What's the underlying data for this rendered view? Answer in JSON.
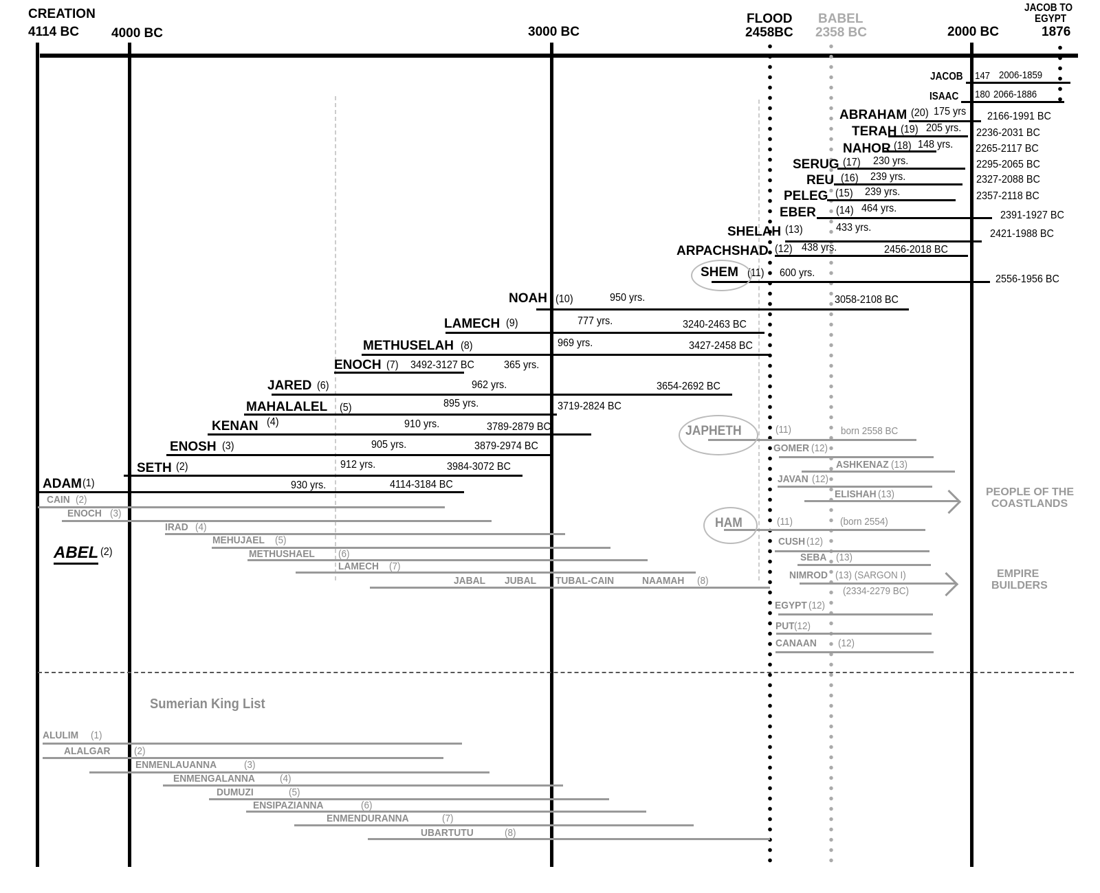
{
  "headers": {
    "creation": "CREATION",
    "creation_year": "4114 BC",
    "bc4000": "4000 BC",
    "bc3000": "3000 BC",
    "flood": "FLOOD",
    "flood_year": "2458BC",
    "babel": "BABEL",
    "babel_year": "2358 BC",
    "bc2000": "2000 BC",
    "jacob_egypt_1": "JACOB TO",
    "jacob_egypt_2": "EGYPT",
    "jacob_egypt_year": "1876"
  },
  "patriarchs": [
    {
      "name": "JACOB",
      "num": "",
      "years": "147",
      "dates": "2006-1859"
    },
    {
      "name": "ISAAC",
      "num": "",
      "years": "180",
      "dates": "2066-1886"
    },
    {
      "name": "ABRAHAM",
      "num": "(20)",
      "years": "175 yrs",
      "dates": "2166-1991 BC"
    },
    {
      "name": "TERAH",
      "num": "(19)",
      "years": "205 yrs.",
      "dates": "2236-2031 BC"
    },
    {
      "name": "NAHOR",
      "num": "(18)",
      "years": "148 yrs.",
      "dates": "2265-2117 BC"
    },
    {
      "name": "SERUG",
      "num": "(17)",
      "years": "230 yrs.",
      "dates": "2295-2065 BC"
    },
    {
      "name": "REU",
      "num": "(16)",
      "years": "239 yrs.",
      "dates": "2327-2088 BC"
    },
    {
      "name": "PELEG",
      "num": "(15)",
      "years": "239 yrs.",
      "dates": "2357-2118 BC"
    },
    {
      "name": "EBER",
      "num": "(14)",
      "years": "464 yrs.",
      "dates": "2391-1927  BC"
    },
    {
      "name": "SHELAH",
      "num": "(13)",
      "years": "433 yrs.",
      "dates": "2421-1988 BC"
    },
    {
      "name": "ARPACHSHAD",
      "num": "(12)",
      "years": "438 yrs.",
      "dates": "2456-2018 BC"
    },
    {
      "name": "SHEM",
      "num": "(11)",
      "years": "600 yrs.",
      "dates": "2556-1956 BC"
    },
    {
      "name": "NOAH",
      "num": "(10)",
      "years": "950 yrs.",
      "dates": "3058-2108 BC"
    },
    {
      "name": "LAMECH",
      "num": "(9)",
      "years": "777 yrs.",
      "dates": "3240-2463 BC"
    },
    {
      "name": "METHUSELAH",
      "num": "(8)",
      "years": "969 yrs.",
      "dates": "3427-2458 BC"
    },
    {
      "name": "ENOCH",
      "num": "(7)",
      "years": "365 yrs.",
      "dates": "3492-3127 BC"
    },
    {
      "name": "JARED",
      "num": "(6)",
      "years": "962 yrs.",
      "dates": "3654-2692 BC"
    },
    {
      "name": "MAHALALEL",
      "num": "(5)",
      "years": "895 yrs.",
      "dates": "3719-2824 BC"
    },
    {
      "name": "KENAN",
      "num": "(4)",
      "years": "910 yrs.",
      "dates": "3789-2879      BC"
    },
    {
      "name": "ENOSH",
      "num": "(3)",
      "years": "905 yrs.",
      "dates": "3879-2974 BC"
    },
    {
      "name": "SETH",
      "num": "(2)",
      "years": "912 yrs.",
      "dates": "3984-3072 BC"
    },
    {
      "name": "ADAM",
      "num": "(1)",
      "years": "930 yrs.",
      "dates": "4114-3184 BC"
    }
  ],
  "abel": {
    "name": "ABEL",
    "num": "(2)"
  },
  "cainites": [
    {
      "name": "CAIN",
      "num": "(2)"
    },
    {
      "name": "ENOCH",
      "num": "(3)"
    },
    {
      "name": "IRAD",
      "num": "(4)"
    },
    {
      "name": "MEHUJAEL",
      "num": "(5)"
    },
    {
      "name": "METHUSHAEL",
      "num": "(6)"
    },
    {
      "name": "LAMECH",
      "num": "(7)"
    }
  ],
  "lamech_children": {
    "names": [
      "JABAL",
      "JUBAL",
      "TUBAL-CAIN",
      "NAAMAH"
    ],
    "num": "(8)"
  },
  "noah_sons": [
    {
      "name": "JAPHETH",
      "num": "(11)",
      "note": "born 2558 BC"
    },
    {
      "name": "GOMER",
      "num": "(12)",
      "note": ""
    },
    {
      "name": "ASHKENAZ",
      "num": "(13)",
      "note": ""
    },
    {
      "name": "JAVAN",
      "num": "(12)",
      "note": ""
    },
    {
      "name": "ELISHAH",
      "num": "(13)",
      "note": ""
    },
    {
      "name": "HAM",
      "num": "(11)",
      "note": "(born 2554)"
    },
    {
      "name": "CUSH",
      "num": "(12)",
      "note": ""
    },
    {
      "name": "SEBA",
      "num": "(13)",
      "note": ""
    },
    {
      "name": "NIMROD",
      "num": "(13) (SARGON I)",
      "note": "(2334-2279 BC)"
    },
    {
      "name": "EGYPT",
      "num": "(12)",
      "note": ""
    },
    {
      "name": "PUT",
      "num": "(12)",
      "note": ""
    },
    {
      "name": "CANAAN",
      "num": "(12)",
      "note": ""
    }
  ],
  "groups": {
    "coastlands_1": "PEOPLE OF THE",
    "coastlands_2": "COASTLANDS",
    "empire_1": "EMPIRE",
    "empire_2": "BUILDERS"
  },
  "sumerian": {
    "title": "Sumerian King List",
    "kings": [
      {
        "name": "ALULIM",
        "num": "(1)"
      },
      {
        "name": "ALALGAR",
        "num": "(2)"
      },
      {
        "name": "ENMENLAUANNA",
        "num": "(3)"
      },
      {
        "name": "ENMENGALANNA",
        "num": "(4)"
      },
      {
        "name": "DUMUZI",
        "num": "(5)"
      },
      {
        "name": "ENSIPAZIANNA",
        "num": "(6)"
      },
      {
        "name": "ENMENDURANNA",
        "num": "(7)"
      },
      {
        "name": "UBARTUTU",
        "num": "(8)"
      }
    ]
  },
  "colors": {
    "main": "#000000",
    "secondary": "#999999",
    "babel": "#aaaaaa"
  }
}
